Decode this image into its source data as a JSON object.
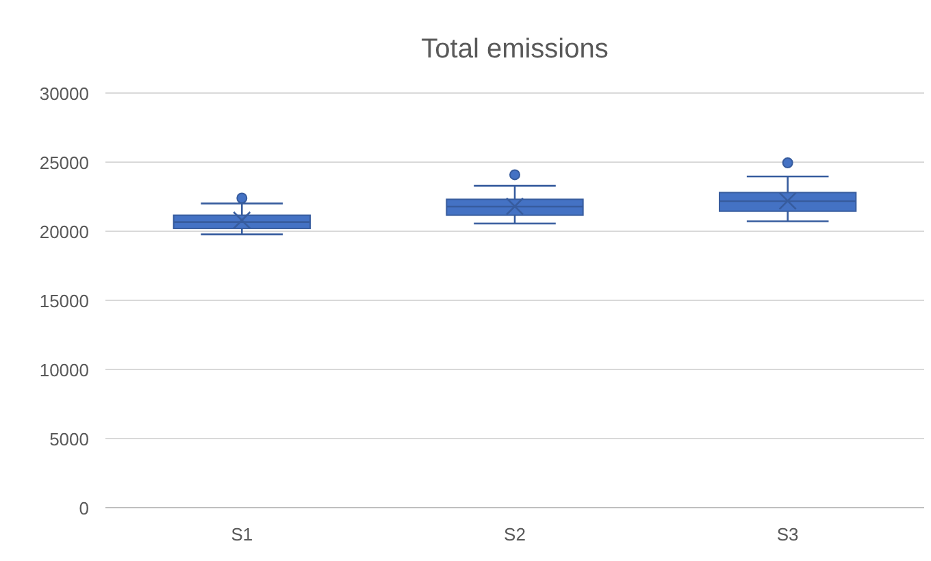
{
  "chart_data": {
    "type": "box",
    "title": "Total emissions",
    "categories": [
      "S1",
      "S2",
      "S3"
    ],
    "color": "#4472c4",
    "boxes": [
      {
        "low": 19770,
        "q1": 20200,
        "median": 20660,
        "q3": 21160,
        "high": 22010,
        "mean": 20790,
        "outliers": [
          22400
        ]
      },
      {
        "low": 20560,
        "q1": 21160,
        "median": 21780,
        "q3": 22310,
        "high": 23300,
        "mean": 21800,
        "outliers": [
          24090
        ]
      },
      {
        "low": 20720,
        "q1": 21450,
        "median": 22180,
        "q3": 22800,
        "high": 23960,
        "mean": 22200,
        "outliers": [
          24950
        ]
      }
    ],
    "ylim": [
      0,
      30000
    ],
    "yticks": [
      0,
      5000,
      10000,
      15000,
      20000,
      25000,
      30000
    ],
    "grid": "y"
  }
}
